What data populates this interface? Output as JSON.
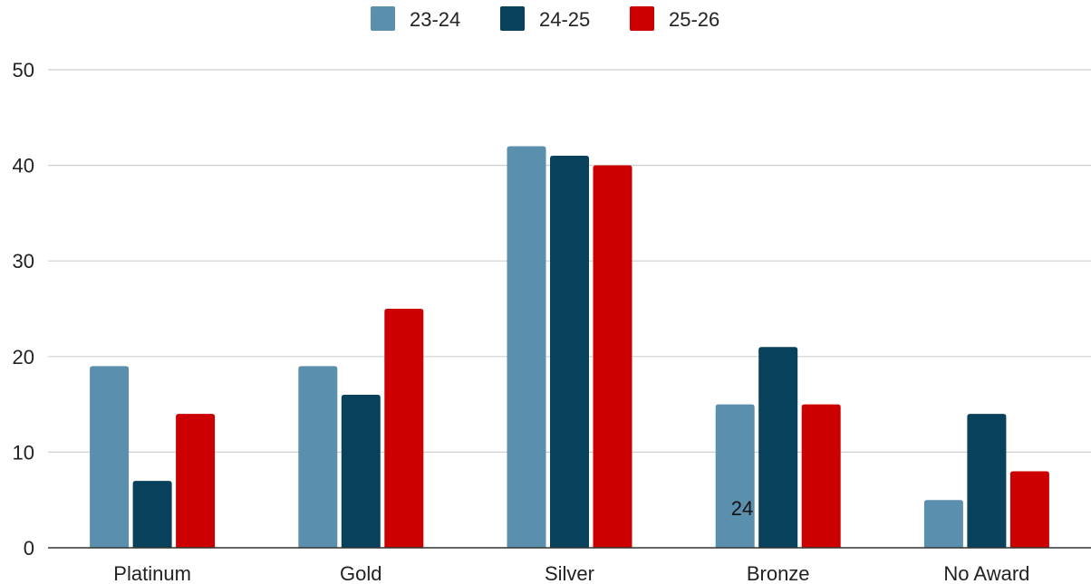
{
  "chart_data": {
    "type": "bar",
    "categories": [
      "Platinum",
      "Gold",
      "Silver",
      "Bronze",
      "No Award"
    ],
    "series": [
      {
        "name": "23-24",
        "color": "#5b8fae",
        "values": [
          19,
          19,
          42,
          15,
          5
        ]
      },
      {
        "name": "24-25",
        "color": "#08415c",
        "values": [
          7,
          16,
          41,
          21,
          14
        ]
      },
      {
        "name": "25-26",
        "color": "#cc0000",
        "values": [
          14,
          25,
          40,
          15,
          8
        ]
      }
    ],
    "ylim": [
      0,
      50
    ],
    "yticks": [
      "0",
      "10",
      "20",
      "30",
      "40",
      "50"
    ],
    "grid": true,
    "legend_position": "top-center",
    "annotation": "24"
  }
}
